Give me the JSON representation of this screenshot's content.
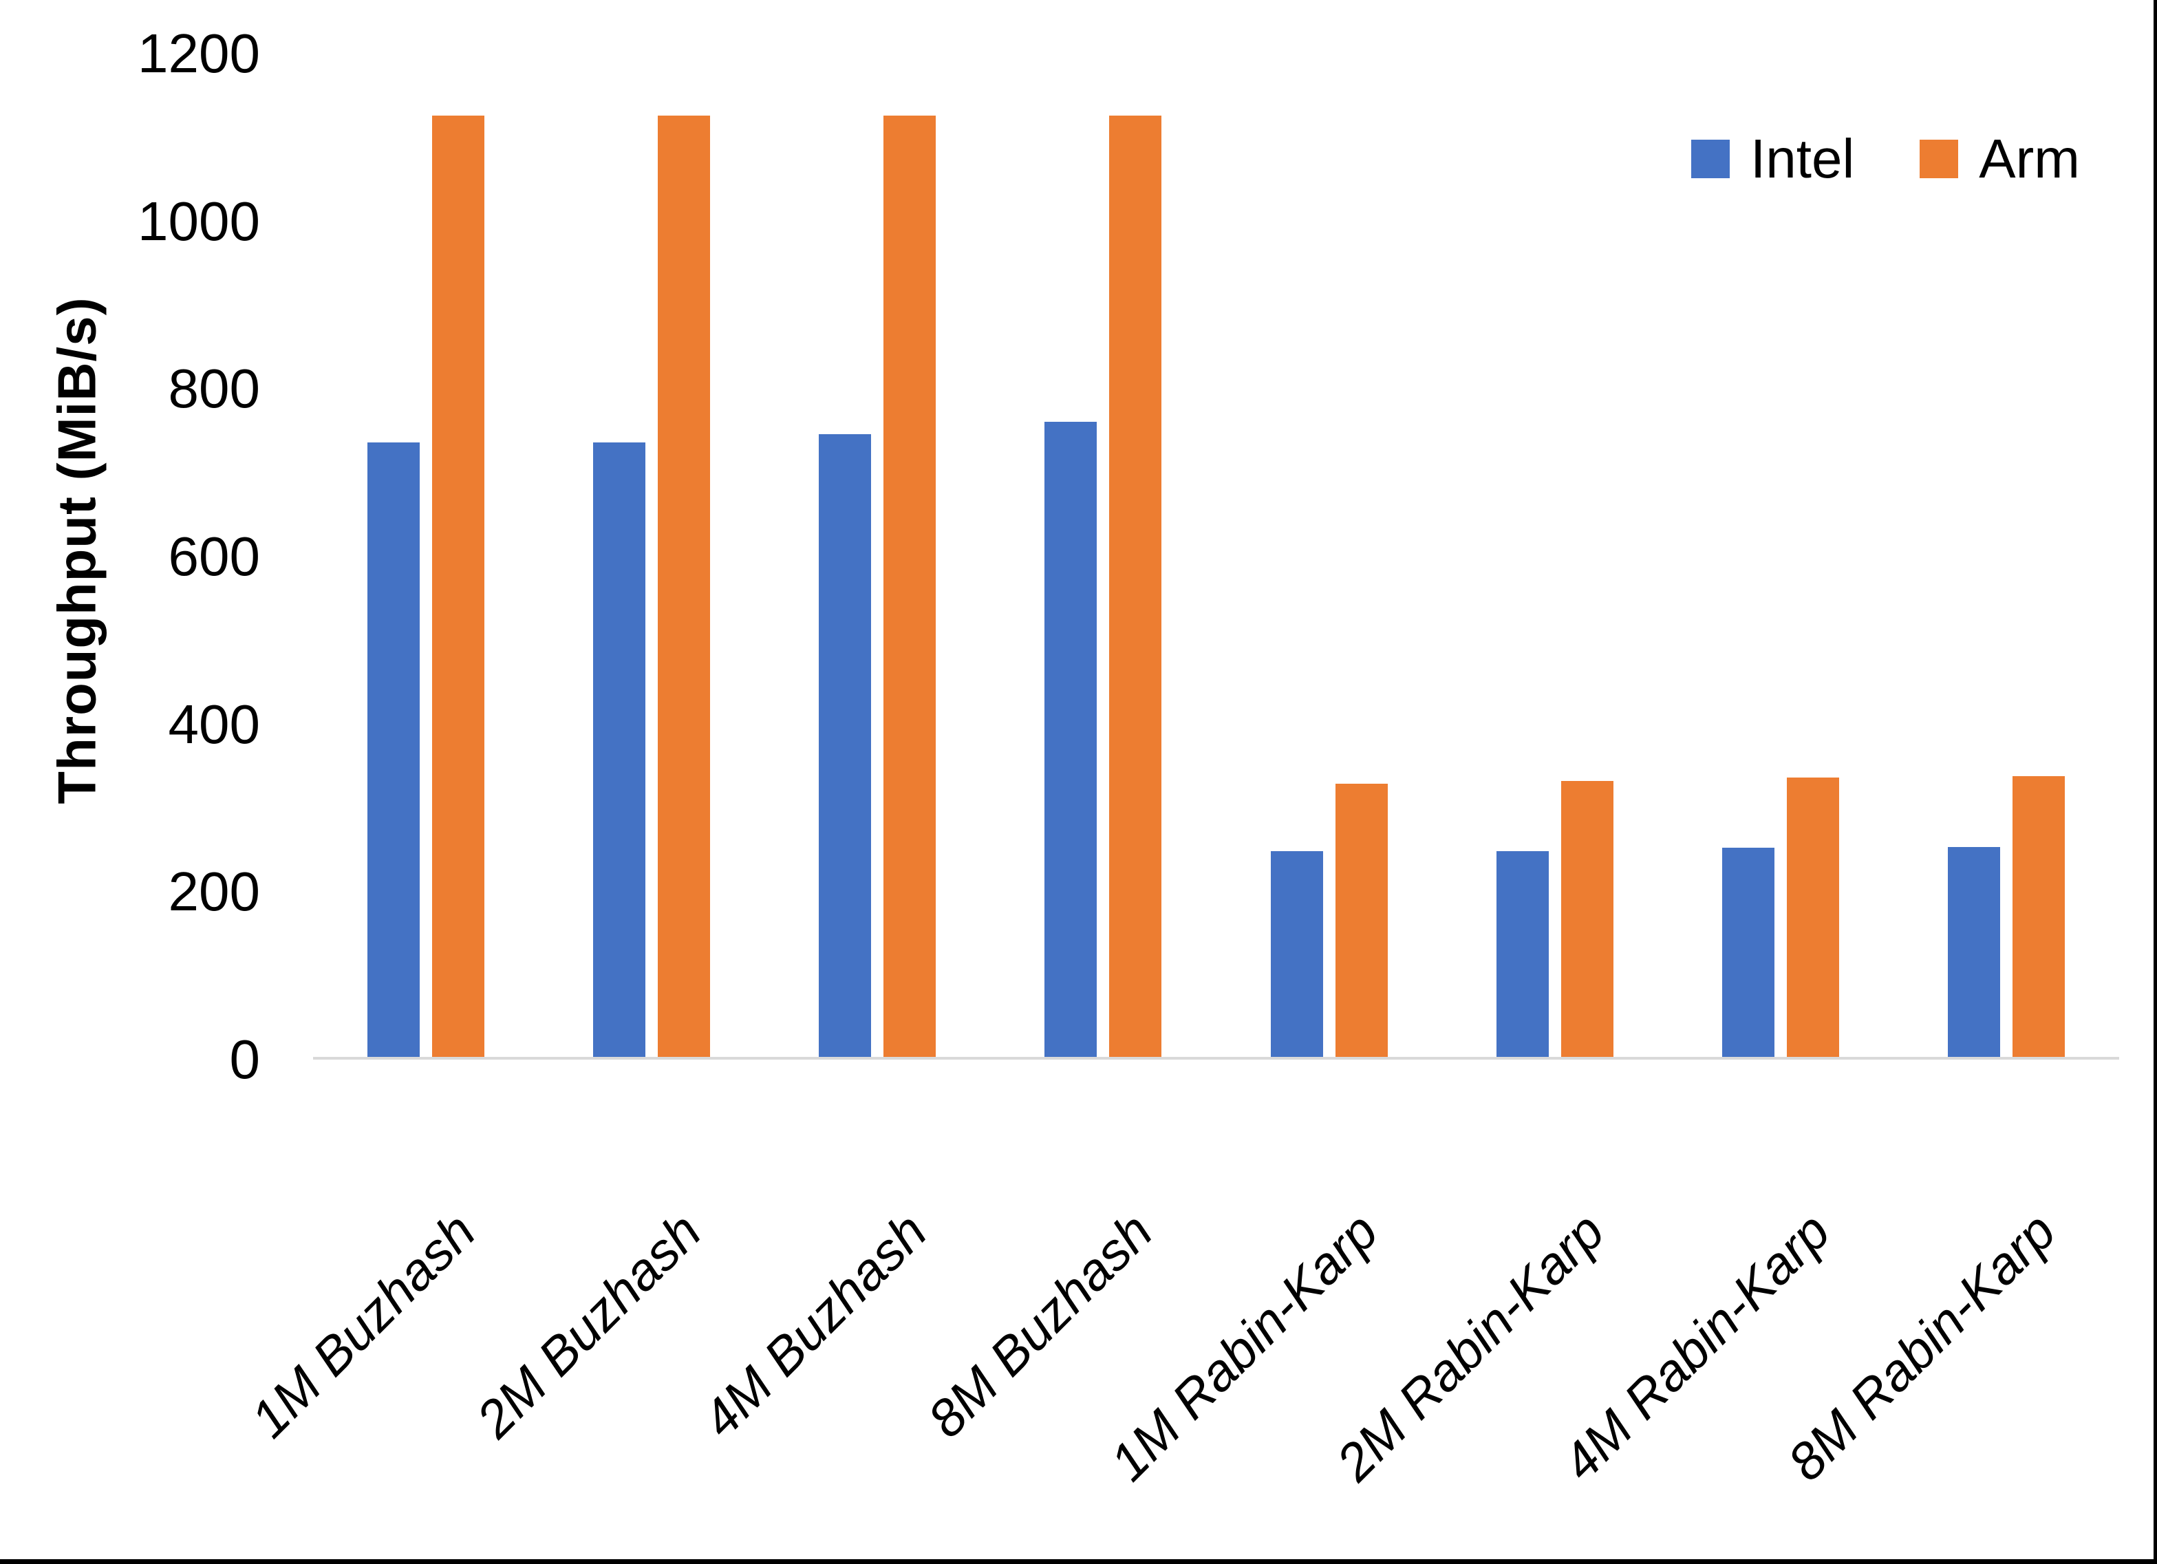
{
  "colors": {
    "background": "#FFFFFF",
    "axis_line": "#D9D9D9",
    "text": "#000000",
    "frame_border": "#000000"
  },
  "legend": {
    "items": [
      {
        "label": "Intel",
        "color": "#4472C4"
      },
      {
        "label": "Arm",
        "color": "#ED7D31"
      }
    ]
  },
  "chart_data": {
    "type": "bar",
    "title": "",
    "xlabel": "",
    "ylabel": "Throughput (MiB/s)",
    "categories": [
      "1M Buzhash",
      "2M Buzhash",
      "4M Buzhash",
      "8M Buzhash",
      "1M Rabin-Karp",
      "2M Rabin-Karp",
      "4M Rabin-Karp",
      "8M Rabin-Karp"
    ],
    "series": [
      {
        "name": "Intel",
        "color": "#4472C4",
        "values": [
          735,
          735,
          745,
          760,
          246,
          246,
          250,
          251
        ]
      },
      {
        "name": "Arm",
        "color": "#ED7D31",
        "values": [
          1126,
          1126,
          1126,
          1126,
          327,
          330,
          334,
          336
        ]
      }
    ],
    "ylim": [
      0,
      1200
    ],
    "yticks": [
      0,
      200,
      400,
      600,
      800,
      1000,
      1200
    ],
    "grid": false,
    "legend_position": "top-right"
  }
}
